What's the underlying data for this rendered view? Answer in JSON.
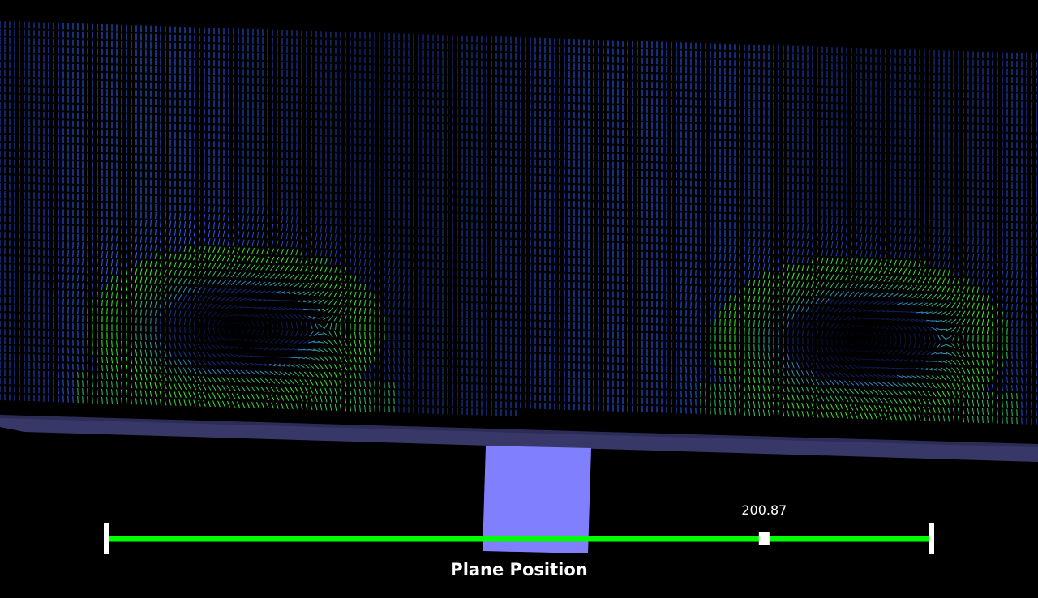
{
  "widget": {
    "title": "Plane Position",
    "value_text": "200.87",
    "value_fraction": 0.797
  },
  "colors": {
    "background": "#000000",
    "slider_track": "#00ff00",
    "slider_caps": "#ffffff",
    "handle": "#ffffff",
    "plane_body": "#383868",
    "plane_top": "#2e2e5a",
    "plane_handle": "#8080ff",
    "glyph_low": "#000010",
    "glyph_mid": "#2a60ff",
    "glyph_high": "#35ff1a"
  },
  "icons": {
    "vector_glyphs": "arrow-glyph",
    "plane_widget": "plane-widget"
  }
}
